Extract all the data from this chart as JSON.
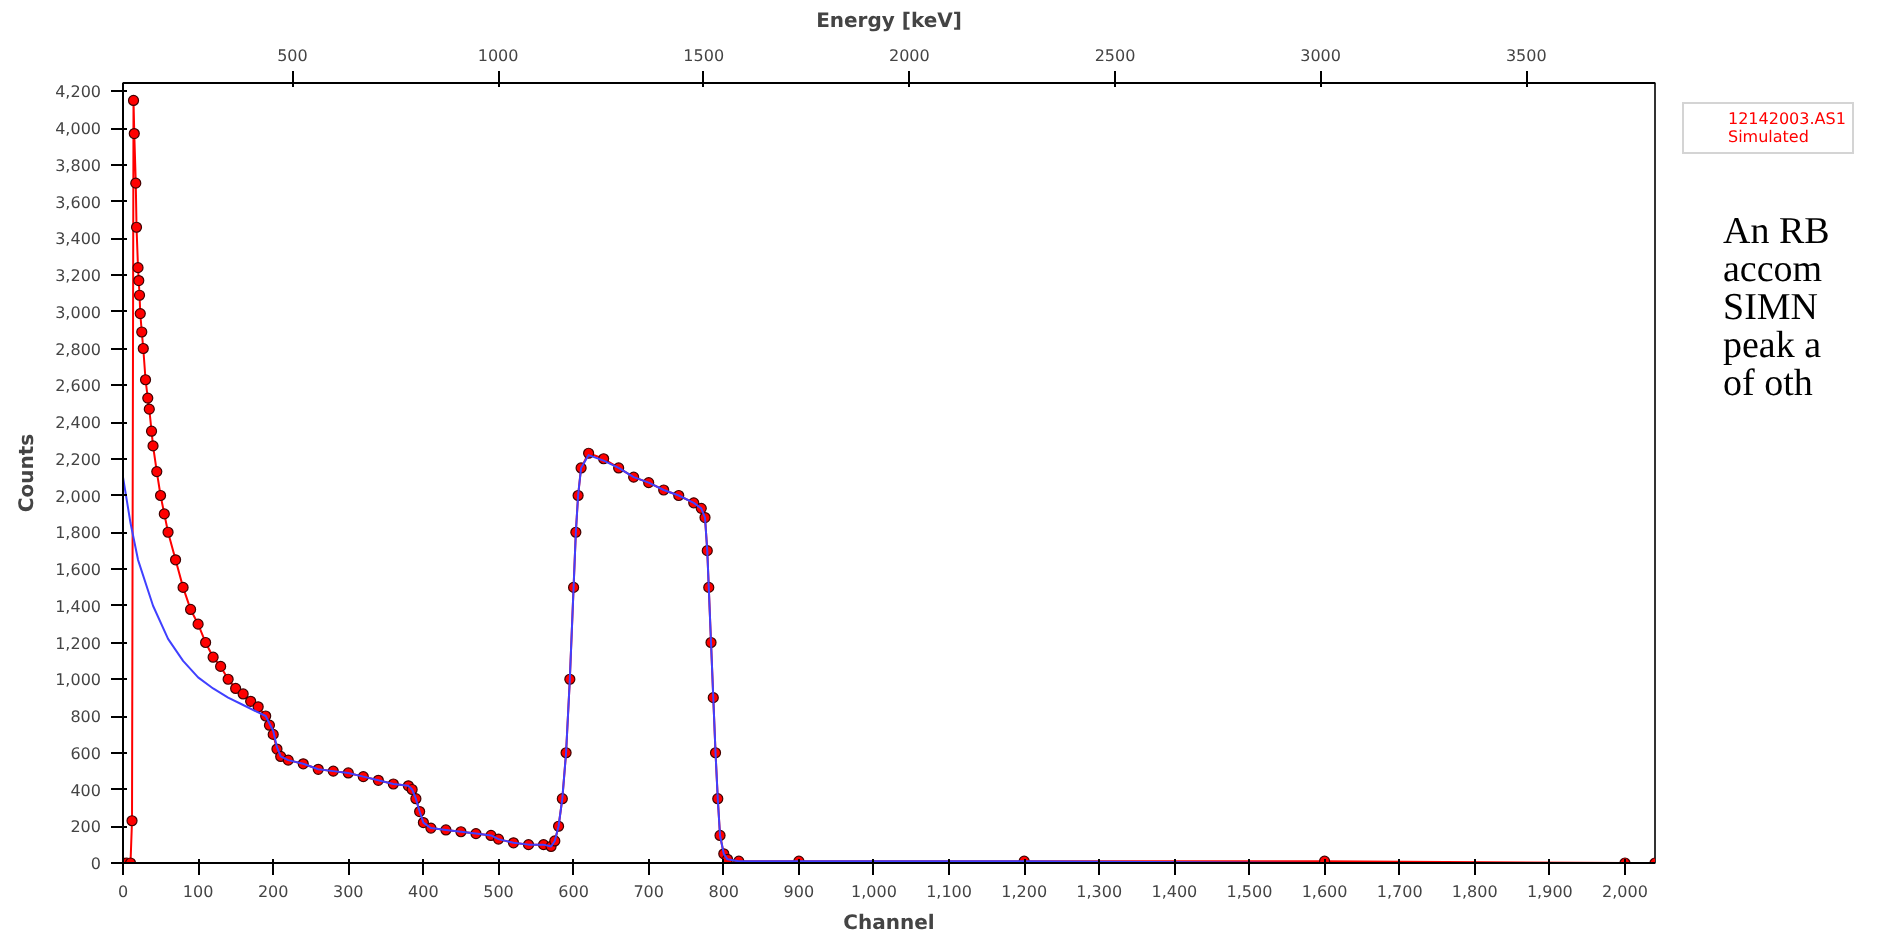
{
  "chart_data": {
    "type": "line",
    "xlabel": "Channel",
    "ylabel": "Counts",
    "x2label": "Energy [keV]",
    "xlim": [
      0,
      2040
    ],
    "ylim": [
      0,
      4245
    ],
    "x2lim": [
      88,
      3813
    ],
    "xticks": [
      0,
      100,
      200,
      300,
      400,
      500,
      600,
      700,
      800,
      900,
      {
        "value": 1000,
        "label": "1,000"
      },
      {
        "value": 1100,
        "label": "1,100"
      },
      {
        "value": 1200,
        "label": "1,200"
      },
      {
        "value": 1300,
        "label": "1,300"
      },
      {
        "value": 1400,
        "label": "1,400"
      },
      {
        "value": 1500,
        "label": "1,500"
      },
      {
        "value": 1600,
        "label": "1,600"
      },
      {
        "value": 1700,
        "label": "1,700"
      },
      {
        "value": 1800,
        "label": "1,800"
      },
      {
        "value": 1900,
        "label": "1,900"
      },
      {
        "value": 2000,
        "label": "2,000"
      }
    ],
    "yticks": [
      0,
      200,
      400,
      600,
      800,
      {
        "value": 1000,
        "label": "1,000"
      },
      {
        "value": 1200,
        "label": "1,200"
      },
      {
        "value": 1400,
        "label": "1,400"
      },
      {
        "value": 1600,
        "label": "1,600"
      },
      {
        "value": 1800,
        "label": "1,800"
      },
      {
        "value": 2000,
        "label": "2,000"
      },
      {
        "value": 2200,
        "label": "2,200"
      },
      {
        "value": 2400,
        "label": "2,400"
      },
      {
        "value": 2600,
        "label": "2,600"
      },
      {
        "value": 2800,
        "label": "2,800"
      },
      {
        "value": 3000,
        "label": "3,000"
      },
      {
        "value": 3200,
        "label": "3,200"
      },
      {
        "value": 3400,
        "label": "3,400"
      },
      {
        "value": 3600,
        "label": "3,600"
      },
      {
        "value": 3800,
        "label": "3,800"
      },
      {
        "value": 4000,
        "label": "4,000"
      },
      {
        "value": 4200,
        "label": "4,200"
      }
    ],
    "x2ticks": [
      500,
      1000,
      1500,
      2000,
      2500,
      3000,
      3500
    ],
    "grid": false,
    "legend": "top right",
    "annotations": [
      "An RB",
      "accom",
      "SIMN",
      "peak a",
      "of oth"
    ],
    "series": [
      {
        "name": "12142003.AS1",
        "color": "#ff0000",
        "marker": "circle",
        "x": [
          0,
          5,
          10,
          12,
          14,
          15,
          17,
          18,
          20,
          21,
          22,
          23,
          25,
          27,
          30,
          33,
          35,
          38,
          40,
          45,
          50,
          55,
          60,
          70,
          80,
          90,
          100,
          110,
          120,
          130,
          140,
          150,
          160,
          170,
          180,
          190,
          195,
          200,
          205,
          210,
          220,
          240,
          260,
          280,
          300,
          320,
          340,
          360,
          380,
          385,
          390,
          395,
          400,
          410,
          430,
          450,
          470,
          490,
          500,
          520,
          540,
          560,
          570,
          575,
          580,
          585,
          590,
          595,
          600,
          603,
          606,
          610,
          620,
          640,
          660,
          680,
          700,
          720,
          740,
          760,
          770,
          775,
          778,
          780,
          783,
          786,
          789,
          792,
          795,
          800,
          805,
          820,
          900,
          1200,
          1600,
          2000,
          2040
        ],
        "values": [
          0,
          0,
          0,
          230,
          4150,
          3970,
          3700,
          3460,
          3240,
          3170,
          3090,
          2990,
          2890,
          2800,
          2630,
          2530,
          2470,
          2350,
          2270,
          2130,
          2000,
          1900,
          1800,
          1650,
          1500,
          1380,
          1300,
          1200,
          1120,
          1070,
          1000,
          950,
          920,
          880,
          850,
          800,
          750,
          700,
          620,
          580,
          560,
          540,
          510,
          500,
          490,
          470,
          450,
          430,
          420,
          400,
          350,
          280,
          220,
          190,
          180,
          170,
          160,
          150,
          130,
          110,
          100,
          100,
          90,
          120,
          200,
          350,
          600,
          1000,
          1500,
          1800,
          2000,
          2150,
          2230,
          2200,
          2150,
          2100,
          2070,
          2030,
          2000,
          1960,
          1930,
          1880,
          1700,
          1500,
          1200,
          900,
          600,
          350,
          150,
          50,
          20,
          10,
          10,
          10,
          10,
          0,
          0
        ]
      },
      {
        "name": "Simulated",
        "color": "#4040ff",
        "marker": "none",
        "x": [
          0,
          10,
          20,
          40,
          60,
          80,
          100,
          120,
          140,
          160,
          180,
          190,
          200,
          205,
          210,
          220,
          240,
          260,
          280,
          300,
          320,
          340,
          360,
          380,
          385,
          390,
          395,
          400,
          410,
          430,
          450,
          470,
          490,
          500,
          520,
          540,
          560,
          570,
          575,
          580,
          585,
          590,
          595,
          600,
          603,
          606,
          610,
          620,
          640,
          660,
          680,
          700,
          720,
          740,
          760,
          770,
          775,
          778,
          780,
          783,
          786,
          789,
          792,
          795,
          800,
          805,
          820,
          900,
          1200,
          1600,
          2000,
          2040
        ],
        "values": [
          2100,
          1850,
          1650,
          1400,
          1220,
          1100,
          1010,
          950,
          900,
          860,
          820,
          800,
          720,
          630,
          580,
          560,
          540,
          510,
          500,
          490,
          470,
          450,
          430,
          420,
          400,
          350,
          280,
          220,
          190,
          180,
          170,
          160,
          150,
          130,
          110,
          100,
          100,
          90,
          120,
          200,
          350,
          600,
          1000,
          1500,
          1800,
          2000,
          2150,
          2220,
          2190,
          2150,
          2100,
          2070,
          2030,
          2000,
          1960,
          1930,
          1880,
          1700,
          1500,
          1200,
          900,
          600,
          350,
          150,
          50,
          20,
          10,
          10,
          10,
          0,
          0,
          0
        ]
      }
    ]
  }
}
